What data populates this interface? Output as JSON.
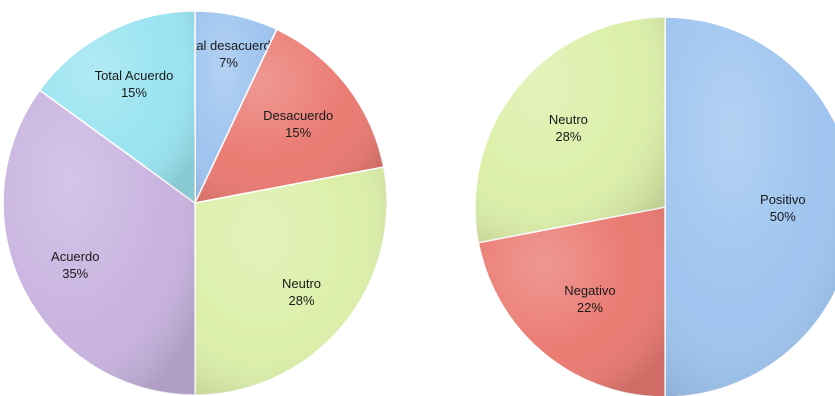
{
  "chart_data": [
    {
      "type": "pie",
      "title": "",
      "start": "top",
      "direction": "clockwise",
      "categories": [
        "Total desacuerdo",
        "Desacuerdo",
        "Neutro",
        "Acuerdo",
        "Total Acuerdo"
      ],
      "values": [
        7,
        15,
        28,
        35,
        15
      ],
      "value_labels": [
        "7%",
        "15%",
        "28%",
        "35%",
        "15%"
      ],
      "colors": [
        "#9ec4ef",
        "#ea7b73",
        "#dcefa9",
        "#c9b4e0",
        "#9ae4f1"
      ],
      "legend": "none"
    },
    {
      "type": "pie",
      "title": "",
      "start": "top",
      "direction": "clockwise",
      "categories": [
        "Positivo",
        "Negativo",
        "Neutro"
      ],
      "values": [
        50,
        22,
        28
      ],
      "value_labels": [
        "50%",
        "22%",
        "28%"
      ],
      "colors": [
        "#9ec4ef",
        "#ea7b73",
        "#dcefa9"
      ],
      "legend": "none"
    }
  ]
}
